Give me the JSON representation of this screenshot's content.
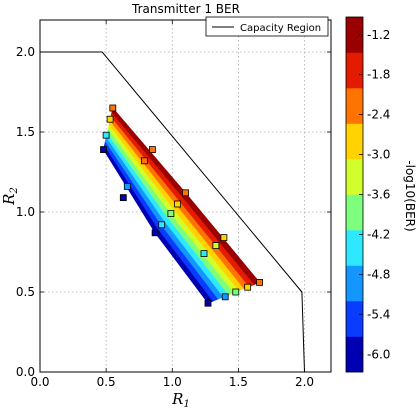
{
  "chart_data": {
    "type": "contour-scatter",
    "title": "Transmitter 1 BER",
    "xlabel": "R",
    "xlabel_sub": "1",
    "ylabel": "R",
    "ylabel_sub": "2",
    "xlim": [
      0.0,
      2.2
    ],
    "ylim": [
      0.0,
      2.2
    ],
    "x_ticks": [
      0.0,
      0.5,
      1.0,
      1.5,
      2.0
    ],
    "y_ticks": [
      0.0,
      0.5,
      1.0,
      1.5,
      2.0
    ],
    "x_tick_labels": [
      "0.0",
      "0.5",
      "1.0",
      "1.5",
      "2.0"
    ],
    "y_tick_labels": [
      "0.0",
      "0.5",
      "1.0",
      "1.5",
      "2.0"
    ],
    "grid": true,
    "legend": {
      "position": "top-right",
      "entries": [
        "Capacity Region"
      ]
    },
    "capacity_region": {
      "name": "Capacity Region",
      "x": [
        0.0,
        0.47,
        1.98,
        2.0
      ],
      "y": [
        2.0,
        2.0,
        0.5,
        0.0
      ]
    },
    "colorbar": {
      "label": "-log10(BER)",
      "levels": [
        -6.0,
        -5.4,
        -4.8,
        -4.2,
        -3.6,
        -3.0,
        -2.4,
        -1.8,
        -1.2
      ],
      "tick_labels": [
        "-6.0",
        "-5.4",
        "-4.8",
        "-4.2",
        "-3.6",
        "-3.0",
        "-2.4",
        "-1.8",
        "-1.2"
      ],
      "colors": [
        "#0000b3",
        "#0a3cff",
        "#1496ff",
        "#2ee8ff",
        "#7dff7d",
        "#d2ff2b",
        "#ffd200",
        "#ff7300",
        "#e31b00",
        "#9b0000"
      ]
    },
    "points": [
      {
        "x": 0.55,
        "y": 1.65,
        "v": -1.4
      },
      {
        "x": 0.53,
        "y": 1.58,
        "v": -2.1
      },
      {
        "x": 0.5,
        "y": 1.48,
        "v": -3.9
      },
      {
        "x": 0.48,
        "y": 1.39,
        "v": -5.5
      },
      {
        "x": 0.79,
        "y": 1.32,
        "v": -1.7
      },
      {
        "x": 0.85,
        "y": 1.39,
        "v": -1.3
      },
      {
        "x": 1.1,
        "y": 1.12,
        "v": -1.3
      },
      {
        "x": 0.66,
        "y": 1.16,
        "v": -4.3
      },
      {
        "x": 0.63,
        "y": 1.09,
        "v": -5.8
      },
      {
        "x": 1.04,
        "y": 1.05,
        "v": -2.3
      },
      {
        "x": 0.99,
        "y": 0.99,
        "v": -3.2
      },
      {
        "x": 0.92,
        "y": 0.92,
        "v": -4.1
      },
      {
        "x": 0.87,
        "y": 0.87,
        "v": -5.7
      },
      {
        "x": 1.39,
        "y": 0.84,
        "v": -1.9
      },
      {
        "x": 1.33,
        "y": 0.79,
        "v": -2.9
      },
      {
        "x": 1.24,
        "y": 0.74,
        "v": -3.6
      },
      {
        "x": 1.66,
        "y": 0.56,
        "v": -1.3
      },
      {
        "x": 1.57,
        "y": 0.53,
        "v": -2.2
      },
      {
        "x": 1.48,
        "y": 0.5,
        "v": -3.4
      },
      {
        "x": 1.4,
        "y": 0.47,
        "v": -4.5
      },
      {
        "x": 1.27,
        "y": 0.43,
        "v": -5.8
      }
    ]
  }
}
